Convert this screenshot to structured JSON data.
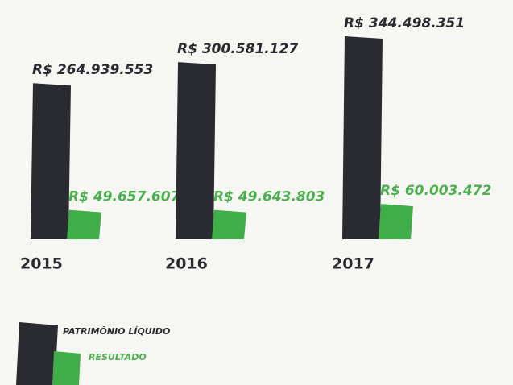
{
  "chart_data": {
    "type": "bar",
    "categories": [
      "2015",
      "2016",
      "2017"
    ],
    "series": [
      {
        "name": "PATRIMÔNIO LÍQUIDO",
        "color": "#2a2b30",
        "values": [
          264939553,
          300581127,
          344498351
        ],
        "value_labels": [
          "R$ 264.939.553",
          "R$ 300.581.127",
          "R$ 344.498.351"
        ]
      },
      {
        "name": "RESULTADO",
        "color": "#3fae49",
        "values": [
          49657607,
          49643803,
          60003472
        ],
        "value_labels": [
          "R$ 49.657.607",
          "R$ 49.643.803",
          "R$ 60.003.472"
        ]
      }
    ]
  }
}
